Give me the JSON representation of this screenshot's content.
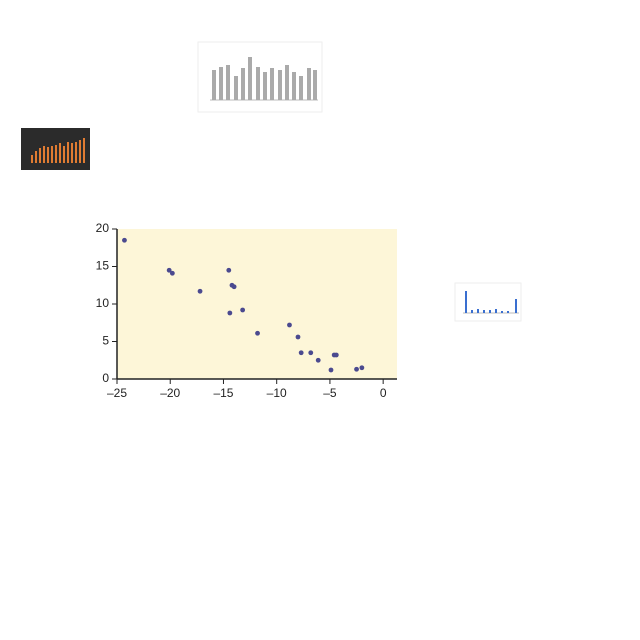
{
  "chart_data": {
    "type": "scatter",
    "x": [
      -24.3,
      -20.1,
      -19.8,
      -17.2,
      -14.5,
      -14.2,
      -14.0,
      -13.2,
      -14.4,
      -11.8,
      -8.8,
      -8.0,
      -7.7,
      -6.8,
      -6.1,
      -4.6,
      -4.4,
      -4.9,
      -2.5,
      -2.0
    ],
    "values": [
      18.5,
      14.5,
      14.1,
      11.7,
      14.5,
      12.5,
      12.3,
      9.2,
      8.8,
      6.1,
      7.2,
      5.6,
      3.5,
      3.5,
      2.5,
      3.2,
      3.2,
      1.2,
      1.3,
      1.5
    ],
    "color": "#4b4a8f",
    "xlim": [
      -25,
      1.3
    ],
    "ylim": [
      0,
      20
    ],
    "xticks": [
      {
        "value": -25,
        "label": "–25"
      },
      {
        "value": -20,
        "label": "–20"
      },
      {
        "value": -15,
        "label": "–15"
      },
      {
        "value": -10,
        "label": "–10"
      },
      {
        "value": -5,
        "label": "–5"
      },
      0
    ],
    "yticks": [
      0,
      5,
      10,
      15,
      20
    ]
  }
}
